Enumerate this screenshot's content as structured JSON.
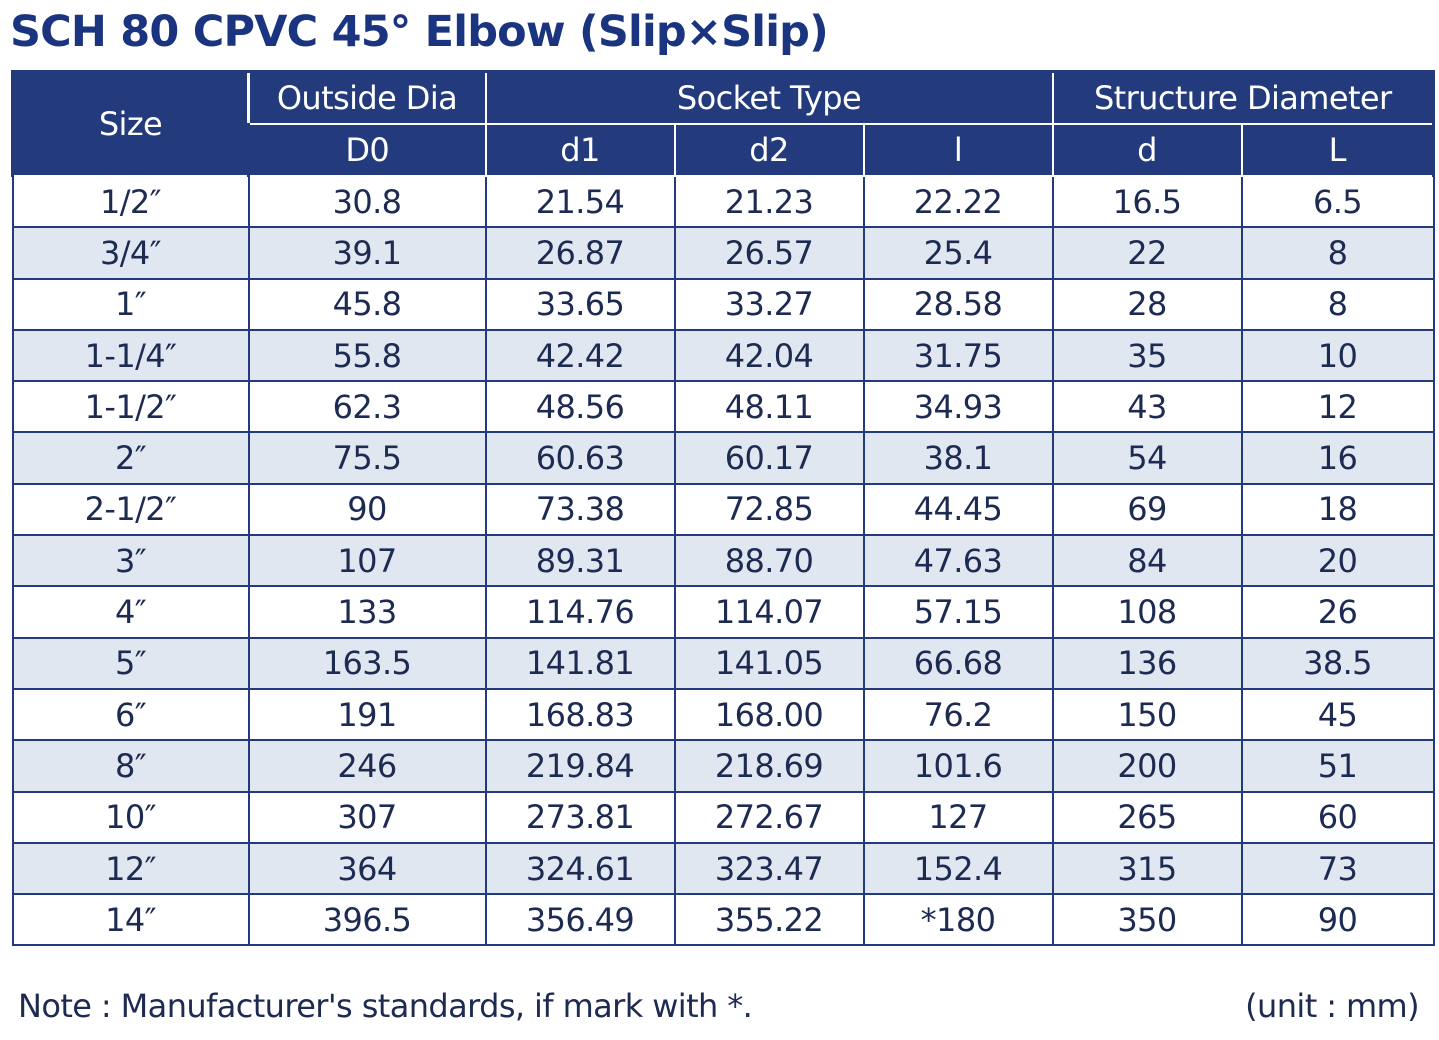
{
  "title": "SCH 80 CPVC 45° Elbow (Slip×Slip)",
  "headers": {
    "size": "Size",
    "outside_dia": "Outside Dia",
    "socket_type": "Socket Type",
    "structure_diameter": "Structure Diameter",
    "D0": "D0",
    "d1": "d1",
    "d2": "d2",
    "l": "l",
    "d": "d",
    "L": "L"
  },
  "rows": [
    [
      "1/2″",
      "30.8",
      "21.54",
      "21.23",
      "22.22",
      "16.5",
      "6.5"
    ],
    [
      "3/4″",
      "39.1",
      "26.87",
      "26.57",
      "25.4",
      "22",
      "8"
    ],
    [
      "1″",
      "45.8",
      "33.65",
      "33.27",
      "28.58",
      "28",
      "8"
    ],
    [
      "1-1/4″",
      "55.8",
      "42.42",
      "42.04",
      "31.75",
      "35",
      "10"
    ],
    [
      "1-1/2″",
      "62.3",
      "48.56",
      "48.11",
      "34.93",
      "43",
      "12"
    ],
    [
      "2″",
      "75.5",
      "60.63",
      "60.17",
      "38.1",
      "54",
      "16"
    ],
    [
      "2-1/2″",
      "90",
      "73.38",
      "72.85",
      "44.45",
      "69",
      "18"
    ],
    [
      "3″",
      "107",
      "89.31",
      "88.70",
      "47.63",
      "84",
      "20"
    ],
    [
      "4″",
      "133",
      "114.76",
      "114.07",
      "57.15",
      "108",
      "26"
    ],
    [
      "5″",
      "163.5",
      "141.81",
      "141.05",
      "66.68",
      "136",
      "38.5"
    ],
    [
      "6″",
      "191",
      "168.83",
      "168.00",
      "76.2",
      "150",
      "45"
    ],
    [
      "8″",
      "246",
      "219.84",
      "218.69",
      "101.6",
      "200",
      "51"
    ],
    [
      "10″",
      "307",
      "273.81",
      "272.67",
      "127",
      "265",
      "60"
    ],
    [
      "12″",
      "364",
      "324.61",
      "323.47",
      "152.4",
      "315",
      "73"
    ],
    [
      "14″",
      "396.5",
      "356.49",
      "355.22",
      "*180",
      "350",
      "90"
    ]
  ],
  "note": "Note : Manufacturer's standards, if mark with *.",
  "unit": "(unit : mm)",
  "colors": {
    "header_bg": "#233a7c",
    "title": "#1b3480",
    "text": "#1d2b52",
    "stripe": "#e1e7f1"
  }
}
